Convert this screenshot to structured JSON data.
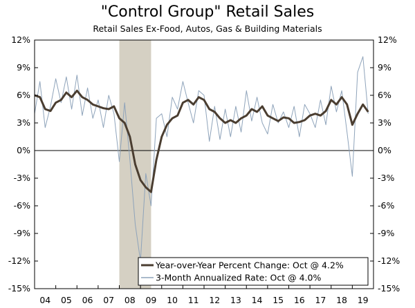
{
  "chart_data": {
    "type": "line",
    "title": "\"Control Group\" Retail Sales",
    "subtitle": "Retail Sales Ex-Food, Autos, Gas & Building Materials",
    "x_tick_labels": [
      "04",
      "05",
      "06",
      "07",
      "08",
      "09",
      "10",
      "11",
      "12",
      "13",
      "14",
      "15",
      "16",
      "17",
      "18",
      "19"
    ],
    "y_tick_labels": [
      "12%",
      "9%",
      "6%",
      "3%",
      "0%",
      "-3%",
      "-6%",
      "-9%",
      "-12%",
      "-15%"
    ],
    "y_tick_values": [
      12,
      9,
      6,
      3,
      0,
      -3,
      -6,
      -9,
      -12,
      -15
    ],
    "ylim": [
      -15,
      12
    ],
    "xlim": [
      2004.0,
      2020.0
    ],
    "shaded_region": {
      "label": "recession",
      "start": 2008.0,
      "end": 2009.5,
      "color": "#d5d0c3"
    },
    "colors": {
      "yoy": "#4a3d30",
      "annualized": "#8ea3ba",
      "zero_line": "#000000"
    },
    "series": [
      {
        "name": "Year-over-Year Percent Change: Oct @ 4.2%",
        "x": [
          2004.0,
          2004.25,
          2004.5,
          2004.75,
          2005.0,
          2005.25,
          2005.5,
          2005.75,
          2006.0,
          2006.25,
          2006.5,
          2006.75,
          2007.0,
          2007.25,
          2007.5,
          2007.75,
          2008.0,
          2008.25,
          2008.5,
          2008.75,
          2009.0,
          2009.25,
          2009.5,
          2009.75,
          2010.0,
          2010.25,
          2010.5,
          2010.75,
          2011.0,
          2011.25,
          2011.5,
          2011.75,
          2012.0,
          2012.25,
          2012.5,
          2012.75,
          2013.0,
          2013.25,
          2013.5,
          2013.75,
          2014.0,
          2014.25,
          2014.5,
          2014.75,
          2015.0,
          2015.25,
          2015.5,
          2015.75,
          2016.0,
          2016.25,
          2016.5,
          2016.75,
          2017.0,
          2017.25,
          2017.5,
          2017.75,
          2018.0,
          2018.25,
          2018.5,
          2018.75,
          2019.0,
          2019.25,
          2019.5,
          2019.75
        ],
        "values": [
          6.0,
          5.8,
          4.5,
          4.3,
          5.2,
          5.5,
          6.3,
          5.8,
          6.5,
          5.8,
          5.5,
          5.0,
          4.8,
          4.6,
          4.5,
          4.8,
          3.5,
          3.0,
          1.5,
          -1.5,
          -3.2,
          -4.0,
          -4.5,
          -1.0,
          1.5,
          2.8,
          3.5,
          3.8,
          5.2,
          5.5,
          5.0,
          5.8,
          5.5,
          4.5,
          4.2,
          3.5,
          3.0,
          3.3,
          3.0,
          3.5,
          3.8,
          4.5,
          4.2,
          4.8,
          3.8,
          3.5,
          3.2,
          3.6,
          3.5,
          3.0,
          3.1,
          3.3,
          3.8,
          4.0,
          3.8,
          4.3,
          5.5,
          5.0,
          5.8,
          5.0,
          2.8,
          4.0,
          5.0,
          4.2
        ]
      },
      {
        "name": "3-Month Annualized Rate: Oct @ 4.0%",
        "x": [
          2004.0,
          2004.25,
          2004.5,
          2004.75,
          2005.0,
          2005.25,
          2005.5,
          2005.75,
          2006.0,
          2006.25,
          2006.5,
          2006.75,
          2007.0,
          2007.25,
          2007.5,
          2007.75,
          2008.0,
          2008.25,
          2008.5,
          2008.75,
          2009.0,
          2009.25,
          2009.5,
          2009.75,
          2010.0,
          2010.25,
          2010.5,
          2010.75,
          2011.0,
          2011.25,
          2011.5,
          2011.75,
          2012.0,
          2012.25,
          2012.5,
          2012.75,
          2013.0,
          2013.25,
          2013.5,
          2013.75,
          2014.0,
          2014.25,
          2014.5,
          2014.75,
          2015.0,
          2015.25,
          2015.5,
          2015.75,
          2016.0,
          2016.25,
          2016.5,
          2016.75,
          2017.0,
          2017.25,
          2017.5,
          2017.75,
          2018.0,
          2018.25,
          2018.5,
          2018.75,
          2019.0,
          2019.25,
          2019.5,
          2019.75
        ],
        "values": [
          4.0,
          7.5,
          2.5,
          4.8,
          7.8,
          5.2,
          8.0,
          4.5,
          8.2,
          3.8,
          6.8,
          3.5,
          5.5,
          2.5,
          6.0,
          4.0,
          -1.2,
          5.2,
          -1.0,
          -8.0,
          -12.0,
          -2.5,
          -6.0,
          3.5,
          4.0,
          1.5,
          5.8,
          4.5,
          7.5,
          5.2,
          3.0,
          6.5,
          6.0,
          1.0,
          4.8,
          1.2,
          4.5,
          1.5,
          4.8,
          2.0,
          6.5,
          3.2,
          5.8,
          3.0,
          1.8,
          5.0,
          3.0,
          4.2,
          2.5,
          4.8,
          1.5,
          5.0,
          4.0,
          2.5,
          5.5,
          2.8,
          7.0,
          4.2,
          6.5,
          2.0,
          -2.8,
          8.5,
          10.2,
          4.0
        ]
      }
    ]
  }
}
